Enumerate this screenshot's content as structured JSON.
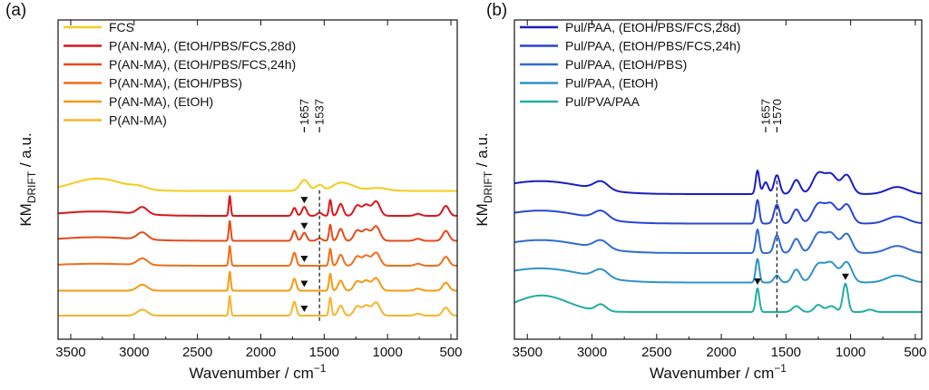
{
  "chart_data": [
    {
      "type": "line",
      "panel_label": "(a)",
      "xlabel_main": "Wavenumber / cm",
      "xlabel_sup": "−1",
      "ylabel_main": "KM",
      "ylabel_sub": "DRIFT",
      "ylabel_unit": " / a.u.",
      "xlim": [
        3600,
        450
      ],
      "x_ticks": [
        3500,
        3000,
        2500,
        2000,
        1500,
        1000,
        500
      ],
      "y_ticks_shown": false,
      "legend_position": "top-left",
      "series": [
        {
          "name": "FCS",
          "color": "#f3cd1a",
          "offset": 5.0,
          "peaks": [
            [
              3290,
              0.62,
              200
            ],
            [
              2960,
              0.12,
              60
            ],
            [
              1657,
              0.55,
              35
            ],
            [
              1537,
              0.3,
              30
            ],
            [
              1400,
              0.2,
              50
            ],
            [
              1320,
              0.32,
              70
            ],
            [
              1080,
              0.15,
              80
            ]
          ]
        },
        {
          "name": "P(AN-MA), (EtOH/PBS/FCS,28d)",
          "color": "#d9171c",
          "offset": 4.0,
          "peaks": [
            [
              3300,
              0.22,
              280
            ],
            [
              2935,
              0.35,
              40
            ],
            [
              2245,
              1.0,
              8
            ],
            [
              1735,
              0.4,
              15
            ],
            [
              1657,
              0.45,
              18
            ],
            [
              1537,
              0.15,
              20
            ],
            [
              1452,
              0.8,
              10
            ],
            [
              1370,
              0.6,
              20
            ],
            [
              1240,
              0.5,
              25
            ],
            [
              1170,
              0.55,
              30
            ],
            [
              1090,
              0.72,
              30
            ],
            [
              760,
              0.1,
              25
            ],
            [
              540,
              0.5,
              25
            ]
          ]
        },
        {
          "name": "P(AN-MA), (EtOH/PBS/FCS,24h)",
          "color": "#e64a19",
          "offset": 3.0,
          "peaks": [
            [
              3300,
              0.18,
              280
            ],
            [
              2935,
              0.35,
              40
            ],
            [
              2245,
              1.0,
              8
            ],
            [
              1735,
              0.5,
              15
            ],
            [
              1657,
              0.4,
              18
            ],
            [
              1537,
              0.12,
              20
            ],
            [
              1452,
              0.8,
              10
            ],
            [
              1370,
              0.6,
              20
            ],
            [
              1240,
              0.5,
              25
            ],
            [
              1170,
              0.55,
              30
            ],
            [
              1090,
              0.72,
              30
            ],
            [
              760,
              0.1,
              25
            ],
            [
              540,
              0.5,
              25
            ]
          ]
        },
        {
          "name": "P(AN-MA), (EtOH/PBS)",
          "color": "#ef6f1a",
          "offset": 2.0,
          "peaks": [
            [
              3300,
              0.1,
              280
            ],
            [
              2935,
              0.33,
              40
            ],
            [
              2245,
              1.0,
              8
            ],
            [
              1735,
              0.65,
              15
            ],
            [
              1452,
              0.85,
              10
            ],
            [
              1370,
              0.55,
              20
            ],
            [
              1240,
              0.45,
              25
            ],
            [
              1170,
              0.5,
              30
            ],
            [
              1090,
              0.65,
              30
            ],
            [
              760,
              0.1,
              25
            ],
            [
              540,
              0.45,
              25
            ]
          ]
        },
        {
          "name": "P(AN-MA), (EtOH)",
          "color": "#f59a14",
          "offset": 1.0,
          "peaks": [
            [
              2935,
              0.3,
              40
            ],
            [
              2245,
              0.95,
              8
            ],
            [
              1735,
              0.6,
              15
            ],
            [
              1452,
              0.85,
              10
            ],
            [
              1370,
              0.5,
              20
            ],
            [
              1240,
              0.45,
              25
            ],
            [
              1170,
              0.5,
              30
            ],
            [
              1090,
              0.62,
              30
            ],
            [
              760,
              0.1,
              25
            ],
            [
              540,
              0.4,
              25
            ]
          ]
        },
        {
          "name": "P(AN-MA)",
          "color": "#f5b52c",
          "offset": 0.0,
          "peaks": [
            [
              2935,
              0.3,
              40
            ],
            [
              2245,
              1.0,
              8
            ],
            [
              1735,
              0.7,
              15
            ],
            [
              1452,
              0.9,
              10
            ],
            [
              1370,
              0.5,
              20
            ],
            [
              1240,
              0.45,
              25
            ],
            [
              1170,
              0.5,
              30
            ],
            [
              1090,
              0.65,
              30
            ],
            [
              760,
              0.1,
              25
            ],
            [
              540,
              0.4,
              25
            ]
          ]
        }
      ],
      "annotations": [
        {
          "text": "1657",
          "x": 1657,
          "style": "solid-line-label"
        },
        {
          "text": "1537",
          "x": 1537,
          "style": "dashed-line-label"
        }
      ],
      "markers": [
        {
          "series_index": 1,
          "x": 1657,
          "symbol": "triangle-down"
        },
        {
          "series_index": 2,
          "x": 1657,
          "symbol": "triangle-down"
        },
        {
          "series_index": 3,
          "x": 1657,
          "symbol": "triangle-down"
        },
        {
          "series_index": 4,
          "x": 1657,
          "symbol": "triangle-down"
        },
        {
          "series_index": 5,
          "x": 1657,
          "symbol": "triangle-down"
        }
      ]
    },
    {
      "type": "line",
      "panel_label": "(b)",
      "xlabel_main": "Wavenumber / cm",
      "xlabel_sup": "−1",
      "ylabel_main": "KM",
      "ylabel_sub": "DRIFT",
      "ylabel_unit": " / a.u.",
      "xlim": [
        3600,
        450
      ],
      "x_ticks": [
        3500,
        3000,
        2500,
        2000,
        1500,
        1000,
        500
      ],
      "y_ticks_shown": false,
      "legend_position": "top-left",
      "series": [
        {
          "name": "Pul/PAA, (EtOH/PBS/FCS,28d)",
          "color": "#1a1ec4",
          "offset": 4.0,
          "peaks": [
            [
              3400,
              0.55,
              330
            ],
            [
              2930,
              0.35,
              55
            ],
            [
              1720,
              1.0,
              14
            ],
            [
              1657,
              0.5,
              20
            ],
            [
              1570,
              0.8,
              22
            ],
            [
              1420,
              0.6,
              30
            ],
            [
              1250,
              0.85,
              45
            ],
            [
              1150,
              0.8,
              45
            ],
            [
              1030,
              0.8,
              40
            ],
            [
              640,
              0.3,
              80
            ]
          ]
        },
        {
          "name": "Pul/PAA, (EtOH/PBS/FCS,24h)",
          "color": "#2945d6",
          "offset": 3.0,
          "peaks": [
            [
              3400,
              0.55,
              330
            ],
            [
              2930,
              0.35,
              55
            ],
            [
              1720,
              1.0,
              14
            ],
            [
              1570,
              0.8,
              22
            ],
            [
              1420,
              0.6,
              30
            ],
            [
              1250,
              0.8,
              45
            ],
            [
              1150,
              0.8,
              45
            ],
            [
              1030,
              0.8,
              40
            ],
            [
              640,
              0.3,
              80
            ]
          ]
        },
        {
          "name": "Pul/PAA, (EtOH/PBS)",
          "color": "#2e6cd1",
          "offset": 2.0,
          "peaks": [
            [
              3400,
              0.55,
              330
            ],
            [
              2930,
              0.35,
              55
            ],
            [
              1720,
              1.0,
              14
            ],
            [
              1570,
              0.75,
              22
            ],
            [
              1420,
              0.6,
              30
            ],
            [
              1250,
              0.8,
              45
            ],
            [
              1150,
              0.8,
              45
            ],
            [
              1030,
              0.8,
              40
            ],
            [
              640,
              0.3,
              80
            ]
          ]
        },
        {
          "name": "Pul/PAA, (EtOH)",
          "color": "#2f93c7",
          "offset": 1.0,
          "peaks": [
            [
              3400,
              0.6,
              330
            ],
            [
              2930,
              0.35,
              55
            ],
            [
              1720,
              1.0,
              14
            ],
            [
              1570,
              0.3,
              22
            ],
            [
              1420,
              0.55,
              30
            ],
            [
              1250,
              0.75,
              45
            ],
            [
              1150,
              0.8,
              45
            ],
            [
              1030,
              0.85,
              40
            ],
            [
              640,
              0.3,
              80
            ]
          ]
        },
        {
          "name": "Pul/PVA/PAA",
          "color": "#1faea6",
          "offset": 0.0,
          "peaks": [
            [
              3390,
              0.7,
              200
            ],
            [
              2930,
              0.28,
              40
            ],
            [
              1720,
              1.0,
              14
            ],
            [
              1420,
              0.25,
              30
            ],
            [
              1250,
              0.3,
              30
            ],
            [
              1150,
              0.25,
              35
            ],
            [
              1040,
              1.2,
              20
            ],
            [
              850,
              0.1,
              30
            ]
          ]
        }
      ],
      "annotations": [
        {
          "text": "1657",
          "x": 1657,
          "style": "solid-line-label"
        },
        {
          "text": "1570",
          "x": 1570,
          "style": "dashed-line-label"
        }
      ],
      "markers": [
        {
          "series_index": 4,
          "x": 1720,
          "symbol": "triangle-down"
        },
        {
          "series_index": 4,
          "x": 1040,
          "symbol": "triangle-down"
        }
      ]
    }
  ]
}
